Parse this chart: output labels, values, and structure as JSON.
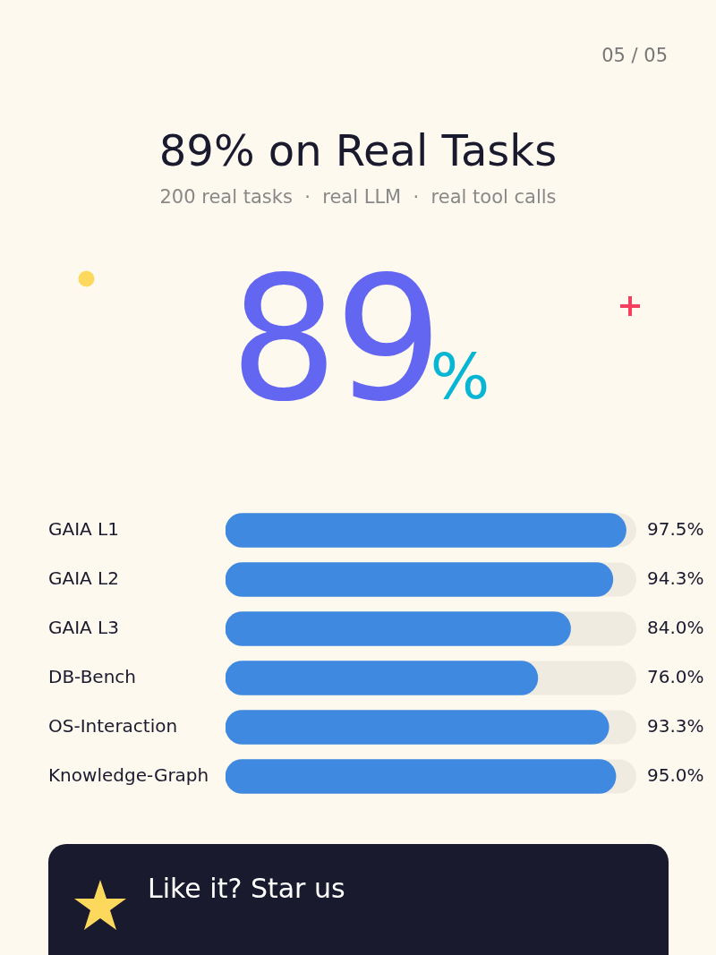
{
  "chart_data": {
    "type": "bar",
    "orientation": "horizontal",
    "title": "89% on Real Tasks",
    "subtitle": "200 real tasks  ·  real LLM  ·  real tool calls",
    "categories": [
      "GAIA L1",
      "GAIA L2",
      "GAIA L3",
      "DB-Bench",
      "OS-Interaction",
      "Knowledge-Graph"
    ],
    "values": [
      97.5,
      94.3,
      84.0,
      76.0,
      93.3,
      95.0
    ],
    "value_labels": [
      "97.5%",
      "94.3%",
      "84.0%",
      "76.0%",
      "93.3%",
      "95.0%"
    ],
    "color": "#3f8ae0",
    "xlim": [
      0,
      100
    ],
    "tick_labels": "y",
    "grid": false,
    "legend": false,
    "annotations": [
      "05 / 05",
      "89%",
      "Like it? Star us"
    ]
  }
}
